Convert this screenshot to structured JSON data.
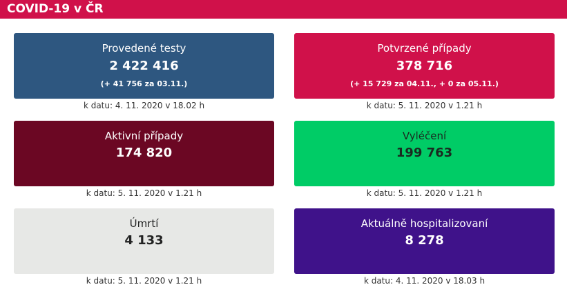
{
  "header": {
    "title": "COVID-19 v ČR"
  },
  "colors": {
    "header_bg": "#d0114a",
    "tests_bg": "#2e5780",
    "confirmed_bg": "#d0114a",
    "active_bg": "#6b0723",
    "recovered_bg": "#00cc66",
    "deaths_bg": "#e7e8e6",
    "hospitalized_bg": "#3f128a"
  },
  "cards": {
    "tests": {
      "label": "Provedené testy",
      "value": "2 422 416",
      "note": "(+ 41 756 za 03.11.)",
      "date": "k datu: 4. 11. 2020 v 18.02 h"
    },
    "confirmed": {
      "label": "Potvrzené případy",
      "value": "378 716",
      "note": "(+ 15 729 za 04.11., + 0 za 05.11.)",
      "date": "k datu: 5. 11. 2020 v 1.21 h"
    },
    "active": {
      "label": "Aktivní případy",
      "value": "174 820",
      "date": "k datu: 5. 11. 2020 v 1.21 h"
    },
    "recovered": {
      "label": "Vyléčení",
      "value": "199 763",
      "date": "k datu: 5. 11. 2020 v 1.21 h"
    },
    "deaths": {
      "label": "Úmrtí",
      "value": "4 133",
      "date": "k datu: 5. 11. 2020 v 1.21 h"
    },
    "hospitalized": {
      "label": "Aktuálně hospitalizovaní",
      "value": "8 278",
      "date": "k datu: 4. 11. 2020 v 18.03 h"
    }
  }
}
